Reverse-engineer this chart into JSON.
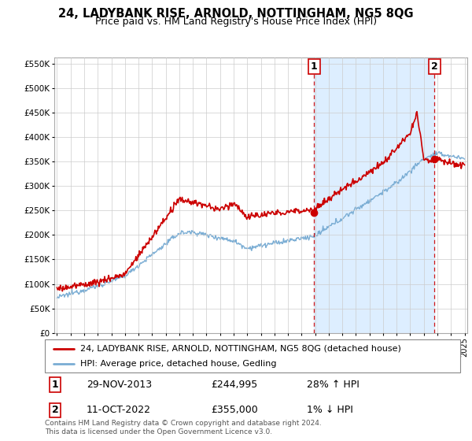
{
  "title": "24, LADYBANK RISE, ARNOLD, NOTTINGHAM, NG5 8QG",
  "subtitle": "Price paid vs. HM Land Registry's House Price Index (HPI)",
  "footer": "Contains HM Land Registry data © Crown copyright and database right 2024.\nThis data is licensed under the Open Government Licence v3.0.",
  "legend_line1": "24, LADYBANK RISE, ARNOLD, NOTTINGHAM, NG5 8QG (detached house)",
  "legend_line2": "HPI: Average price, detached house, Gedling",
  "sale1_date": "29-NOV-2013",
  "sale1_price": "£244,995",
  "sale1_hpi": "28% ↑ HPI",
  "sale2_date": "11-OCT-2022",
  "sale2_price": "£355,000",
  "sale2_hpi": "1% ↓ HPI",
  "hpi_color": "#7aadd4",
  "price_color": "#cc0000",
  "shade_color": "#ddeeff",
  "dashed_color": "#cc0000",
  "ylim": [
    0,
    562500
  ],
  "yticks": [
    0,
    50000,
    100000,
    150000,
    200000,
    250000,
    300000,
    350000,
    400000,
    450000,
    500000,
    550000
  ],
  "start_year": 1995,
  "end_year": 2025,
  "sale1_year": 2013.92,
  "sale1_price_val": 244995,
  "sale2_year": 2022.78,
  "sale2_price_val": 355000
}
